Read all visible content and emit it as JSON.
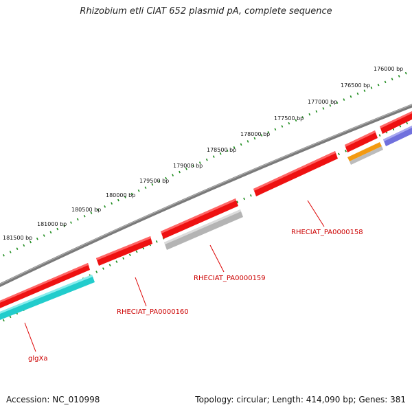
{
  "title": "Rhizobium etli CIAT 652 plasmid pA, complete sequence",
  "footer": {
    "accession": "Accession: NC_010998",
    "summary": "Topology: circular; Length: 414,090 bp; Genes: 381"
  },
  "colors": {
    "backbone": "#808080",
    "tick": "#1a8a1a",
    "gene_red": "#ee1111",
    "gene_gray": "#b4b4b4",
    "gene_cyan": "#22cccc",
    "gene_orange": "#f39a12",
    "gene_purple": "#7070dd",
    "label_red": "#cc0000"
  },
  "ruler": {
    "labels": [
      "176000 bp",
      "176500 bp",
      "177000 bp",
      "177500 bp",
      "178000 bp",
      "178500 bp",
      "179000 bp",
      "179500 bp",
      "180000 bp",
      "180500 bp",
      "181000 bp",
      "181500 bp"
    ]
  },
  "gene_labels": [
    "RHECIAT_PA0000158",
    "RHECIAT_PA0000159",
    "RHECIAT_PA0000160",
    "glgXa"
  ]
}
